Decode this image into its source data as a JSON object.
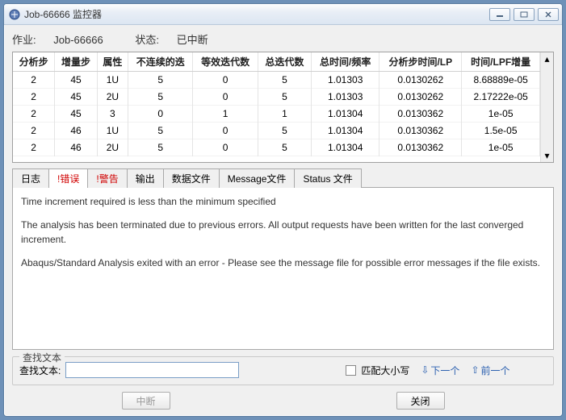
{
  "window": {
    "title": "Job-66666 监控器",
    "icon": "app"
  },
  "jobline": {
    "jobLabel": "作业:",
    "jobName": "Job-66666",
    "statusLabel": "状态:",
    "statusValue": "已中断"
  },
  "table": {
    "columns": [
      "分析步",
      "增量步",
      "属性",
      "不连续的迭",
      "等效迭代数",
      "总迭代数",
      "总时间/频率",
      "分析步时间/LP",
      "时间/LPF增量"
    ],
    "rows": [
      [
        "2",
        "45",
        "1U",
        "5",
        "0",
        "5",
        "1.01303",
        "0.0130262",
        "8.68889e-05"
      ],
      [
        "2",
        "45",
        "2U",
        "5",
        "0",
        "5",
        "1.01303",
        "0.0130262",
        "2.17222e-05"
      ],
      [
        "2",
        "45",
        "3",
        "0",
        "1",
        "1",
        "1.01304",
        "0.0130362",
        "1e-05"
      ],
      [
        "2",
        "46",
        "1U",
        "5",
        "0",
        "5",
        "1.01304",
        "0.0130362",
        "1.5e-05"
      ],
      [
        "2",
        "46",
        "2U",
        "5",
        "0",
        "5",
        "1.01304",
        "0.0130362",
        "1e-05"
      ]
    ]
  },
  "tabs": {
    "items": [
      {
        "label": "日志",
        "red": false,
        "active": false
      },
      {
        "label": "!错误",
        "red": true,
        "active": true
      },
      {
        "label": "!警告",
        "red": true,
        "active": false
      },
      {
        "label": "输出",
        "red": false,
        "active": false
      },
      {
        "label": "数据文件",
        "red": false,
        "active": false
      },
      {
        "label": "Message文件",
        "red": false,
        "active": false
      },
      {
        "label": "Status 文件",
        "red": false,
        "active": false
      }
    ]
  },
  "log": {
    "line1": "Time increment required is less than the minimum specified",
    "line2": "The analysis has been terminated due to previous errors. All output requests have been written for the last converged increment.",
    "line3": "Abaqus/Standard Analysis exited with an error - Please see the  message file for possible error messages if the file exists."
  },
  "search": {
    "legend": "查找文本",
    "label": "查找文本:",
    "value": "",
    "matchCase": "匹配大小写",
    "next": "下一个",
    "prev": "前一个"
  },
  "buttons": {
    "interrupt": "中断",
    "close": "关闭"
  }
}
